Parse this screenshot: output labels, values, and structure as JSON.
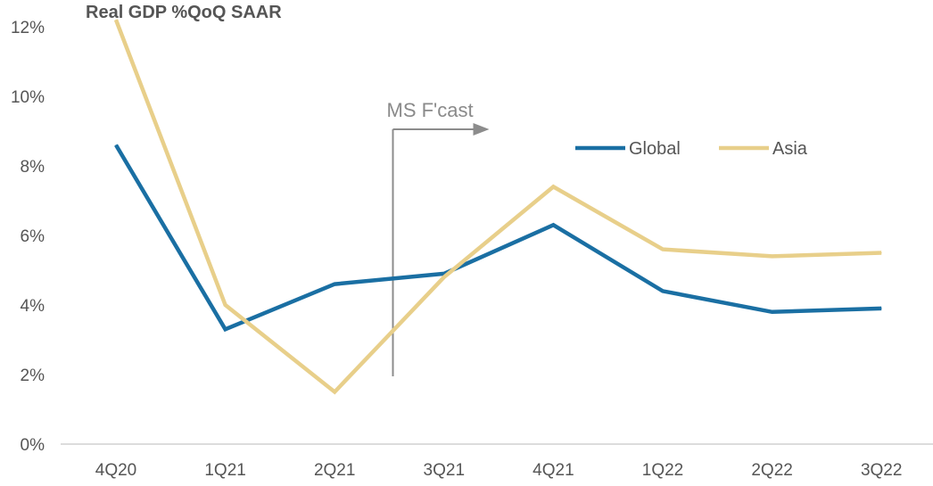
{
  "chart_data": {
    "type": "line",
    "title": "Real GDP %QoQ SAAR",
    "xlabel": "",
    "ylabel": "",
    "categories": [
      "4Q20",
      "1Q21",
      "2Q21",
      "3Q21",
      "4Q21",
      "1Q22",
      "2Q22",
      "3Q22"
    ],
    "ylim": [
      0,
      12
    ],
    "yticks": [
      "0%",
      "2%",
      "4%",
      "6%",
      "8%",
      "10%",
      "12%"
    ],
    "grid": false,
    "legend_position": "top-right",
    "series": [
      {
        "name": "Global",
        "values": [
          8.6,
          3.3,
          4.6,
          4.9,
          6.3,
          4.4,
          3.8,
          3.9
        ],
        "color": "#1a6fa3"
      },
      {
        "name": "Asia",
        "values": [
          12.2,
          4.0,
          1.5,
          4.8,
          7.4,
          5.6,
          5.4,
          5.5
        ],
        "color": "#e8cf8a"
      }
    ],
    "annotations": [
      {
        "text": "MS F'cast",
        "at_category": "3Q21",
        "arrow_direction": "right"
      }
    ]
  }
}
